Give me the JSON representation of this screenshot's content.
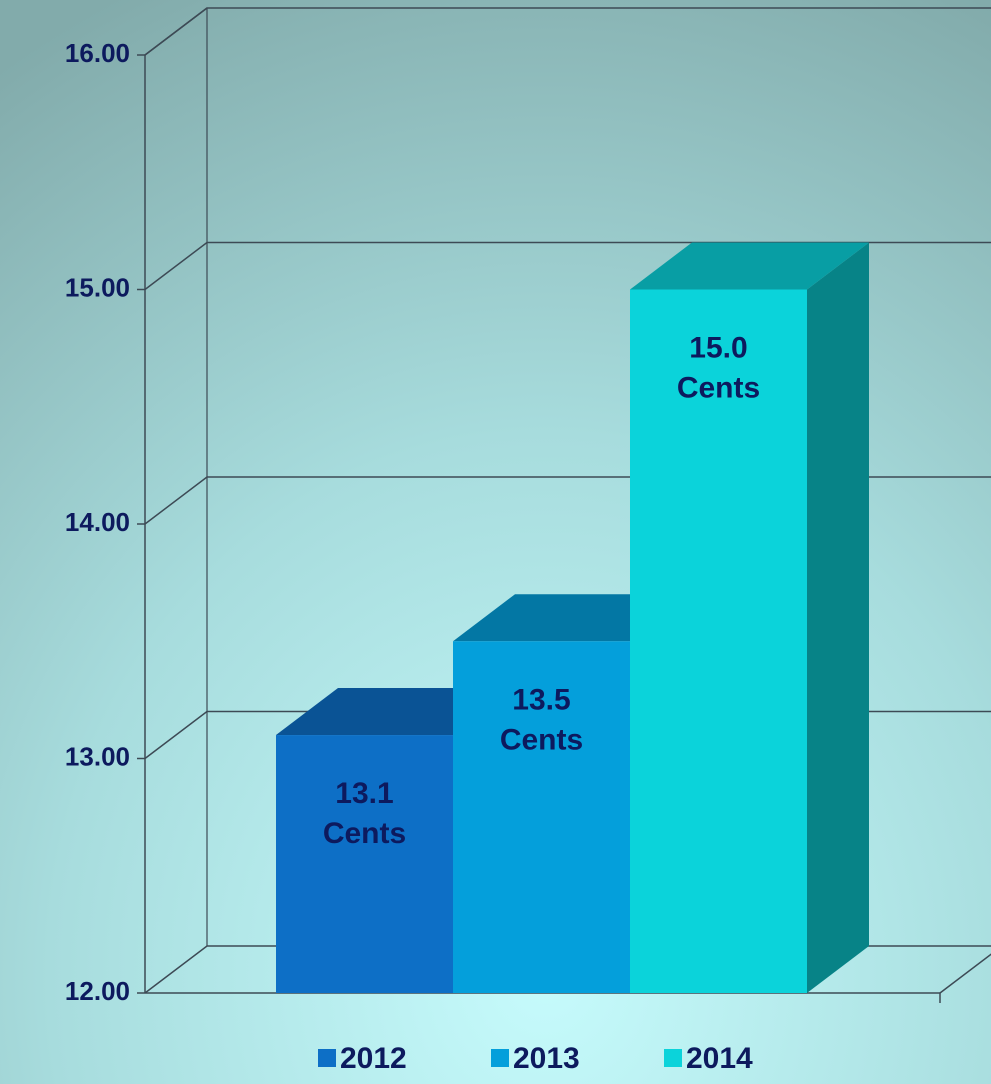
{
  "chart_data": {
    "type": "bar3d",
    "categories": [
      null
    ],
    "series": [
      {
        "name": "2012",
        "color": "#0d6fc6",
        "values": [
          13.1
        ],
        "value_labels": [
          "13.1 Cents"
        ]
      },
      {
        "name": "2013",
        "color": "#049fdb",
        "values": [
          13.5
        ],
        "value_labels": [
          "13.5 Cents"
        ]
      },
      {
        "name": "2014",
        "color": "#0bd3da",
        "values": [
          15.0
        ],
        "value_labels": [
          "15.0 Cents"
        ]
      }
    ],
    "ylim": [
      12,
      16
    ],
    "yticks": [
      {
        "value": 12,
        "label": "12.00"
      },
      {
        "value": 13,
        "label": "13.00"
      },
      {
        "value": 14,
        "label": "14.00"
      },
      {
        "value": 15,
        "label": "15.00"
      },
      {
        "value": 16,
        "label": "16.00"
      }
    ],
    "grid": true,
    "legend": "bottom"
  }
}
